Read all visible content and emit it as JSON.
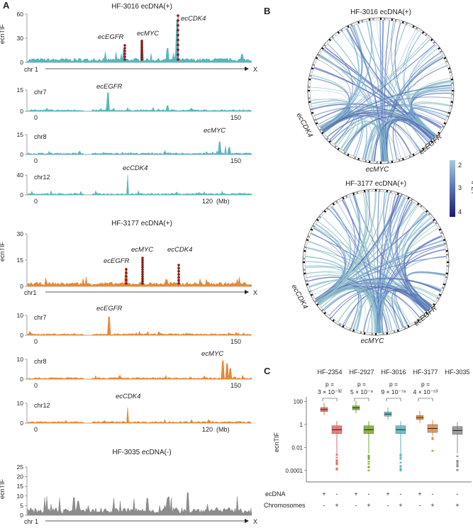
{
  "colors": {
    "teal": "#5ab4bd",
    "orange": "#e08a3c",
    "gray": "#8c8c8c",
    "dark_red": "#8b1a1a",
    "green": "#7aa832",
    "salmon": "#e06a60",
    "purple": "#3a2a8c",
    "light_blue": "#8ab8d8"
  },
  "panelA": {
    "label": "A",
    "ylabel": "ecnTIF",
    "hf3016": {
      "title": "HF-3016 ecDNA(+)",
      "genome": {
        "ymax": 60,
        "yticks": [
          "0",
          "30",
          "60"
        ],
        "chr_label": "chr 1",
        "chr_end": "X",
        "peaks": [
          "ecEGFR",
          "ecMYC",
          "ecCDK4"
        ]
      },
      "chr7": {
        "name": "chr7",
        "gene": "ecEGFR",
        "yticks": [
          "0",
          "15"
        ],
        "xticks": [
          "0",
          "150"
        ]
      },
      "chr8": {
        "name": "chr8",
        "gene": "ecMYC",
        "yticks": [
          "0",
          "15"
        ],
        "xticks": [
          "0",
          "150"
        ]
      },
      "chr12": {
        "name": "chr12",
        "gene": "ecCDK4",
        "yticks": [
          "0",
          "40"
        ],
        "xticks": [
          "0",
          "120"
        ],
        "unit": "(Mb)"
      }
    },
    "hf3177": {
      "title": "HF-3177 ecDNA(+)",
      "genome": {
        "yticks": [
          "0",
          "15",
          "30"
        ],
        "chr_label": "chr1",
        "chr_end": "X",
        "peaks": [
          "ecEGFR",
          "ecMYC",
          "ecCDK4"
        ]
      },
      "chr7": {
        "name": "chr7",
        "gene": "ecEGFR",
        "yticks": [
          "0",
          "10"
        ],
        "xticks": [
          "0",
          "150"
        ]
      },
      "chr8": {
        "name": "chr8",
        "gene": "ecMYC",
        "yticks": [
          "0",
          "10"
        ],
        "xticks": [
          "0",
          "150"
        ]
      },
      "chr12": {
        "name": "chr12",
        "gene": "ecCDK4",
        "yticks": [
          "0",
          "10"
        ],
        "xticks": [
          "0",
          "120"
        ],
        "unit": "(Mb)"
      }
    },
    "hf3035": {
      "title": "HF-3035 ecDNA(-)",
      "genome": {
        "yticks": [
          "0",
          "5",
          "10",
          "15",
          "20",
          "25"
        ],
        "chr_label": "chr 1",
        "chr_end": "X"
      }
    }
  },
  "panelB": {
    "label": "B",
    "top": {
      "title": "HF-3016  ecDNA(+)",
      "genes": [
        "ecCDK4",
        "ecMYC",
        "ecEGFR"
      ]
    },
    "bottom": {
      "title": "HF-3177 ecDNA(+)",
      "genes": [
        "ecCDK4",
        "ecMYC",
        "ecEGFR"
      ]
    },
    "legend": {
      "title": "lPET",
      "ticks": [
        "2",
        "3",
        "4"
      ]
    }
  },
  "chart_data": {
    "type": "box",
    "title": "",
    "ylabel": "ecnTIF",
    "yticks": [
      "100",
      "1",
      "0.01",
      "0.0001"
    ],
    "groups": [
      {
        "name": "HF-2354",
        "pvalue_label": "p =",
        "pvalue": "3 × 10⁻³²",
        "ecdna_median": 20,
        "chrom_median": 0.35
      },
      {
        "name": "HF-2927",
        "pvalue_label": "p =",
        "pvalue": "5 × 10⁻⁹",
        "ecdna_median": 28,
        "chrom_median": 0.35
      },
      {
        "name": "HF-3016",
        "pvalue_label": "p =",
        "pvalue": "9 × 10⁻⁷⁸",
        "ecdna_median": 8,
        "chrom_median": 0.35
      },
      {
        "name": "HF-3177",
        "pvalue_label": "p =",
        "pvalue": "4 × 10⁻⁵³",
        "ecdna_median": 4,
        "chrom_median": 0.45
      },
      {
        "name": "HF-3035",
        "pvalue_label": "",
        "pvalue": "",
        "ecdna_median": null,
        "chrom_median": 0.3
      }
    ],
    "row_labels": [
      "ecDNA",
      "Chromosomes"
    ],
    "plus": "+",
    "minus": "-"
  },
  "panelC": {
    "label": "C"
  }
}
